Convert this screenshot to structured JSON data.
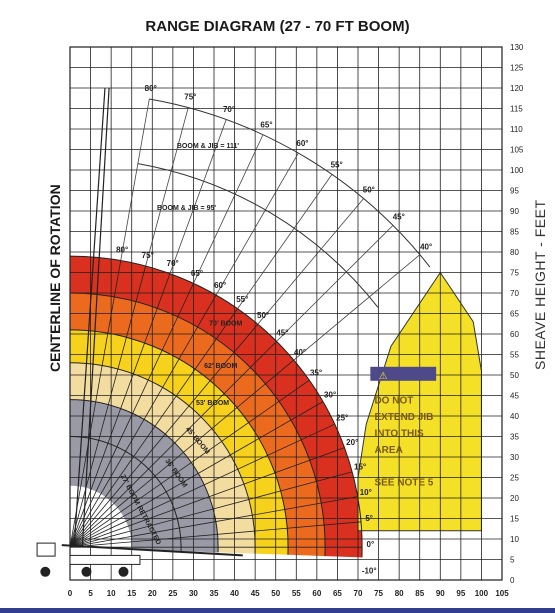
{
  "title": "RANGE DIAGRAM (27 - 70 FT BOOM)",
  "left_label": "CENTERLINE OF ROTATION",
  "right_label": "SHEAVE HEIGHT - FEET",
  "x_ticks": [
    "0",
    "5",
    "10",
    "15",
    "20",
    "25",
    "30",
    "35",
    "40",
    "45",
    "50",
    "55",
    "60",
    "65",
    "70",
    "75",
    "80",
    "85",
    "90",
    "95",
    "100",
    "105"
  ],
  "y_ticks": [
    "130",
    "125",
    "120",
    "115",
    "110",
    "105",
    "100",
    "95",
    "90",
    "85",
    "80",
    "75",
    "70",
    "65",
    "60",
    "55",
    "50",
    "45",
    "40",
    "35",
    "30",
    "25",
    "20",
    "15",
    "10",
    "5",
    "0"
  ],
  "outer_angle_labels": [
    "80°",
    "75°",
    "70°",
    "65°",
    "60°",
    "55°",
    "50°",
    "45°",
    "40°"
  ],
  "inner_angle_labels": [
    "80°",
    "75°",
    "70°",
    "65°",
    "60°",
    "55°",
    "50°",
    "45°",
    "40°",
    "35°",
    "30°",
    "25°",
    "20°",
    "15°",
    "10°",
    "5°",
    "0°",
    "-10°"
  ],
  "arc_labels": {
    "boom_jib_111": "BOOM & JIB = 111'",
    "boom_jib_95": "BOOM & JIB = 95'",
    "boom_70": "70' BOOM",
    "boom_62": "62' BOOM",
    "boom_53": "53' BOOM",
    "boom_45": "45' BOOM",
    "boom_36": "36' BOOM",
    "boom_27": "27' BOOM RETRACTED"
  },
  "warning": {
    "line1": "DO NOT",
    "line2": "EXTEND JIB",
    "line3": "INTO THIS",
    "line4": "AREA",
    "line5": "SEE NOTE 5"
  },
  "colors": {
    "band_70": "#d9301f",
    "band_62": "#ec6a1e",
    "band_53": "#f6d21c",
    "band_45": "#f3dca0",
    "band_27": "#9a9aa6",
    "no_jib_area": "#f4e026",
    "grid": "#1f1f1f",
    "frame_bar": "#2f3e8f"
  }
}
